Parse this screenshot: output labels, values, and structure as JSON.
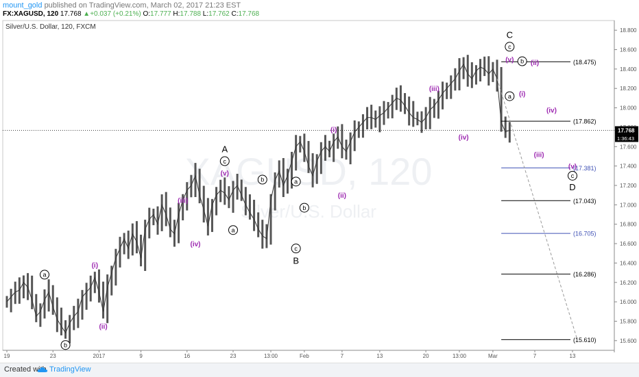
{
  "header": {
    "user": "mount_gold",
    "published": "published on TradingView.com, March 02, 2017 21:23 EST",
    "symbol": "FX:XAGUSD, 120",
    "open_label": "O:",
    "open": "17.777",
    "high_label": "H:",
    "high": "17.788",
    "low_label": "L:",
    "low": "17.762",
    "close_label": "C:",
    "close": "17.768",
    "last": "17.768",
    "change": "▲+0.037 (+0.21%)"
  },
  "chart_title": "Silver/U.S. Dollar, 120, FXCM",
  "watermark": {
    "symbol": "XAGUSD, 120",
    "name": "Silver/U.S. Dollar"
  },
  "footer": {
    "created_with": "Created with",
    "brand": "TradingView"
  },
  "colors": {
    "candle": "#555555",
    "wave_purple": "#9c27b0",
    "level_black": "#000000",
    "level_blue": "#3f51b5",
    "current_price_bg": "#000000"
  },
  "chart_data": {
    "type": "line",
    "title": "Silver/U.S. Dollar, 120, FXCM",
    "ylim": [
      15.5,
      18.9
    ],
    "y_ticks": [
      "18.800",
      "18.600",
      "18.400",
      "18.200",
      "18.000",
      "17.800",
      "17.600",
      "17.400",
      "17.200",
      "17.000",
      "16.800",
      "16.600",
      "16.400",
      "16.200",
      "16.000",
      "15.800",
      "15.600"
    ],
    "x_ticks": [
      {
        "label": "19",
        "i": 0
      },
      {
        "label": "23",
        "i": 11
      },
      {
        "label": "2017",
        "i": 22
      },
      {
        "label": "9",
        "i": 32
      },
      {
        "label": "16",
        "i": 43
      },
      {
        "label": "23",
        "i": 54
      },
      {
        "label": "13:00",
        "i": 63
      },
      {
        "label": "Feb",
        "i": 71
      },
      {
        "label": "7",
        "i": 80
      },
      {
        "label": "13",
        "i": 89
      },
      {
        "label": "20",
        "i": 100
      },
      {
        "label": "13:00",
        "i": 108
      },
      {
        "label": "Mar",
        "i": 116
      },
      {
        "label": "7",
        "i": 126
      },
      {
        "label": "13",
        "i": 135
      }
    ],
    "x_count": 145,
    "current_price": 17.768,
    "current_price_label": "17.768",
    "countdown": "1:36:43",
    "series": [
      {
        "values": [
          16.0,
          16.05,
          16.1,
          16.12,
          16.2,
          16.15,
          16.02,
          15.85,
          15.9,
          16.02,
          16.1,
          15.95,
          15.82,
          15.75,
          15.68,
          15.78,
          15.85,
          15.9,
          16.05,
          16.1,
          16.15,
          16.25,
          16.1,
          15.9,
          16.15,
          16.3,
          16.45,
          16.55,
          16.65,
          16.55,
          16.7,
          16.62,
          16.45,
          16.75,
          16.85,
          16.9,
          16.8,
          17.0,
          16.9,
          16.75,
          16.7,
          16.9,
          17.05,
          17.15,
          17.2,
          17.3,
          17.1,
          16.95,
          16.78,
          17.0,
          17.1,
          17.15,
          17.12,
          17.05,
          17.15,
          17.2,
          17.1,
          17.0,
          16.92,
          16.85,
          16.75,
          16.68,
          16.65,
          17.05,
          17.25,
          17.35,
          17.2,
          17.3,
          17.45,
          17.6,
          17.65,
          17.55,
          17.4,
          17.3,
          17.45,
          17.55,
          17.6,
          17.55,
          17.65,
          17.7,
          17.6,
          17.55,
          17.65,
          17.75,
          17.8,
          17.85,
          17.9,
          17.9,
          17.88,
          17.92,
          17.95,
          18.0,
          18.05,
          18.1,
          18.08,
          18.02,
          17.95,
          17.9,
          17.88,
          17.85,
          17.9,
          17.98,
          18.02,
          18.08,
          18.15,
          18.2,
          18.25,
          18.3,
          18.38,
          18.45,
          18.35,
          18.3,
          18.38,
          18.42,
          18.4,
          18.35,
          18.4,
          18.3,
          17.85,
          17.75,
          17.77
        ]
      }
    ],
    "levels": [
      {
        "label": "(18.475)",
        "value": 18.475,
        "color": "#000000",
        "x_from": 118
      },
      {
        "label": "(17.862)",
        "value": 17.862,
        "color": "#000000",
        "x_from": 118
      },
      {
        "label": "(17.381)",
        "value": 17.381,
        "color": "#3f51b5",
        "x_from": 118
      },
      {
        "label": "(17.043)",
        "value": 17.043,
        "color": "#000000",
        "x_from": 118
      },
      {
        "label": "(16.705)",
        "value": 16.705,
        "color": "#3f51b5",
        "x_from": 118
      },
      {
        "label": "(16.286)",
        "value": 16.286,
        "color": "#000000",
        "x_from": 118
      },
      {
        "label": "(15.610)",
        "value": 15.61,
        "color": "#000000",
        "x_from": 118
      }
    ],
    "projection": {
      "from_i": 117,
      "from_v": 18.3,
      "to_i": 136,
      "to_v": 15.63
    },
    "annotations": [
      {
        "text": "a",
        "i": 9,
        "v": 16.28,
        "circle": true,
        "color": "#000000"
      },
      {
        "text": "b",
        "i": 14,
        "v": 15.555,
        "circle": true,
        "color": "#000000"
      },
      {
        "text": "(i)",
        "i": 21,
        "v": 16.38,
        "circle": false,
        "color": "#9c27b0"
      },
      {
        "text": "(ii)",
        "i": 23,
        "v": 15.75,
        "circle": false,
        "color": "#9c27b0"
      },
      {
        "text": "(iii)",
        "i": 42,
        "v": 17.05,
        "circle": false,
        "color": "#9c27b0"
      },
      {
        "text": "(iv)",
        "i": 45,
        "v": 16.6,
        "circle": false,
        "color": "#9c27b0"
      },
      {
        "text": "A",
        "i": 52,
        "v": 17.57,
        "circle": false,
        "color": "#000000"
      },
      {
        "text": "c",
        "i": 52,
        "v": 17.45,
        "circle": true,
        "color": "#000000"
      },
      {
        "text": "(v)",
        "i": 52,
        "v": 17.33,
        "circle": false,
        "color": "#9c27b0"
      },
      {
        "text": "a",
        "i": 54,
        "v": 16.74,
        "circle": true,
        "color": "#000000"
      },
      {
        "text": "b",
        "i": 61,
        "v": 17.26,
        "circle": true,
        "color": "#000000"
      },
      {
        "text": "a",
        "i": 69,
        "v": 17.24,
        "circle": true,
        "color": "#000000"
      },
      {
        "text": "b",
        "i": 71,
        "v": 16.97,
        "circle": true,
        "color": "#000000"
      },
      {
        "text": "c",
        "i": 69,
        "v": 16.55,
        "circle": true,
        "color": "#000000"
      },
      {
        "text": "B",
        "i": 69,
        "v": 16.42,
        "circle": false,
        "color": "#000000"
      },
      {
        "text": "(i)",
        "i": 78,
        "v": 17.78,
        "circle": false,
        "color": "#9c27b0"
      },
      {
        "text": "(ii)",
        "i": 80,
        "v": 17.1,
        "circle": false,
        "color": "#9c27b0"
      },
      {
        "text": "(iii)",
        "i": 102,
        "v": 18.2,
        "circle": false,
        "color": "#9c27b0"
      },
      {
        "text": "(iv)",
        "i": 109,
        "v": 17.7,
        "circle": false,
        "color": "#9c27b0"
      },
      {
        "text": "C",
        "i": 120,
        "v": 18.75,
        "circle": false,
        "color": "#000000"
      },
      {
        "text": "c",
        "i": 120,
        "v": 18.63,
        "circle": true,
        "color": "#000000"
      },
      {
        "text": "(v)",
        "i": 120,
        "v": 18.5,
        "circle": false,
        "color": "#9c27b0"
      },
      {
        "text": "b",
        "i": 123,
        "v": 18.48,
        "circle": true,
        "color": "#000000"
      },
      {
        "text": "(ii)",
        "i": 126,
        "v": 18.47,
        "circle": false,
        "color": "#9c27b0"
      },
      {
        "text": "a",
        "i": 120,
        "v": 18.12,
        "circle": true,
        "color": "#000000"
      },
      {
        "text": "(i)",
        "i": 123,
        "v": 18.15,
        "circle": false,
        "color": "#9c27b0"
      },
      {
        "text": "(iv)",
        "i": 130,
        "v": 17.98,
        "circle": false,
        "color": "#9c27b0"
      },
      {
        "text": "(iii)",
        "i": 127,
        "v": 17.52,
        "circle": false,
        "color": "#9c27b0"
      },
      {
        "text": "(v)",
        "i": 135,
        "v": 17.4,
        "circle": false,
        "color": "#9c27b0"
      },
      {
        "text": "c",
        "i": 135,
        "v": 17.3,
        "circle": true,
        "color": "#000000"
      },
      {
        "text": "D",
        "i": 135,
        "v": 17.18,
        "circle": false,
        "color": "#000000"
      }
    ]
  }
}
